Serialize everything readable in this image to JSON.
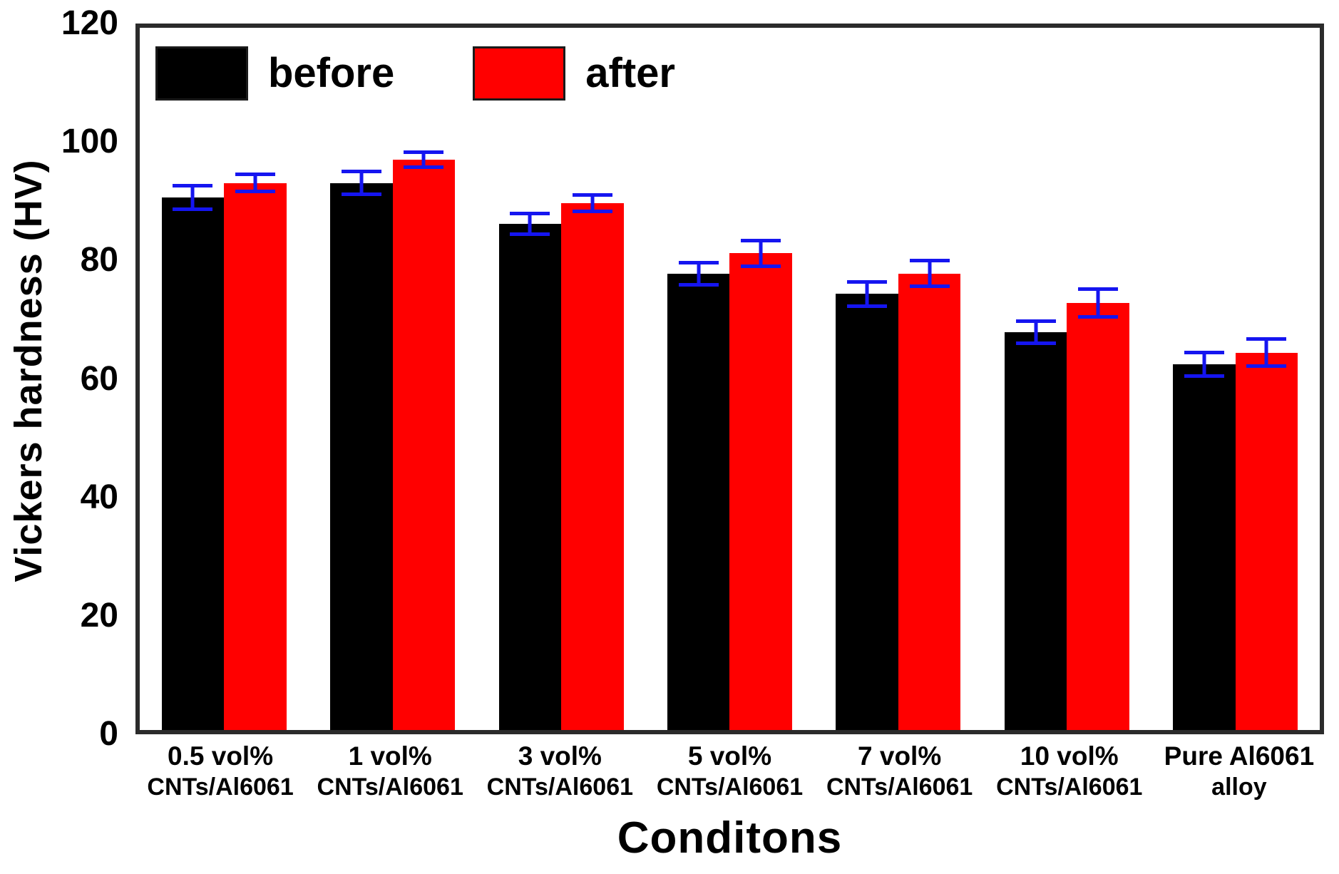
{
  "figure": {
    "background": "#ffffff",
    "plot_border_color": "#2b2b2b"
  },
  "legend": {
    "items": [
      {
        "label": "before",
        "color": "#000000"
      },
      {
        "label": "after",
        "color": "#ff0000"
      }
    ]
  },
  "chart_data": {
    "type": "bar",
    "title": "",
    "xlabel": "Conditons",
    "ylabel": "Vickers hardness (HV)",
    "ylim": [
      0,
      120
    ],
    "yticks": [
      0,
      20,
      40,
      60,
      80,
      100,
      120
    ],
    "grid": false,
    "legend_position": "top-left-inside",
    "error_bar_color": "#1515f0",
    "categories": [
      {
        "line1": "0.5 vol%",
        "line2": "CNTs/Al6061"
      },
      {
        "line1": "1 vol%",
        "line2": "CNTs/Al6061"
      },
      {
        "line1": "3 vol%",
        "line2": "CNTs/Al6061"
      },
      {
        "line1": "5 vol%",
        "line2": "CNTs/Al6061"
      },
      {
        "line1": "7 vol%",
        "line2": "CNTs/Al6061"
      },
      {
        "line1": "10 vol%",
        "line2": "CNTs/Al6061"
      },
      {
        "line1": "Pure Al6061",
        "line2": "alloy"
      }
    ],
    "series": [
      {
        "name": "before",
        "color": "#000000",
        "values": [
          91,
          93.5,
          86.5,
          78,
          74.5,
          68,
          62.5
        ],
        "errors": [
          2.3,
          2.2,
          2.1,
          2.2,
          2.4,
          2.2,
          2.3
        ]
      },
      {
        "name": "after",
        "color": "#ff0000",
        "values": [
          93.5,
          97.5,
          90,
          81.5,
          78,
          73,
          64.5
        ],
        "errors": [
          1.8,
          1.6,
          1.7,
          2.5,
          2.5,
          2.7,
          2.6
        ]
      }
    ]
  }
}
